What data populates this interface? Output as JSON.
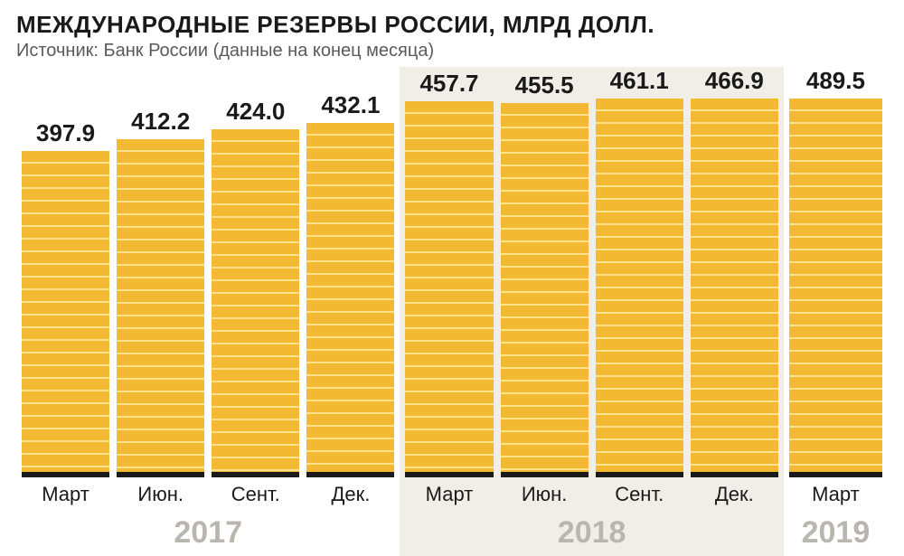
{
  "title": "МЕЖДУНАРОДНЫЕ РЕЗЕРВЫ РОССИИ, МЛРД ДОЛЛ.",
  "subtitle": "Источник: Банк России (данные на конец месяца)",
  "chart": {
    "type": "bar",
    "y_max": 500,
    "bar_fill": "#f4b933",
    "bar_stripe": "#ffe28a",
    "bar_base": "#1a1a1a",
    "value_fontsize": 26,
    "value_color": "#1a1a1a",
    "month_fontsize": 22,
    "month_color": "#1a1a1a",
    "year_fontsize": 34,
    "year_color": "#b9b6af",
    "background_default": "#ffffff",
    "background_alt": "#f1eee8",
    "groups": [
      {
        "year": "2017",
        "bg": "#ffffff",
        "bars": [
          {
            "month": "Март",
            "value": 397.9
          },
          {
            "month": "Июн.",
            "value": 412.2
          },
          {
            "month": "Сент.",
            "value": 424.0
          },
          {
            "month": "Дек.",
            "value": 432.1
          }
        ]
      },
      {
        "year": "2018",
        "bg": "#f1eee8",
        "bars": [
          {
            "month": "Март",
            "value": 457.7
          },
          {
            "month": "Июн.",
            "value": 455.5
          },
          {
            "month": "Сент.",
            "value": 461.1
          },
          {
            "month": "Дек.",
            "value": 466.9
          }
        ]
      },
      {
        "year": "2019",
        "bg": "#ffffff",
        "bars": [
          {
            "month": "Март",
            "value": 489.5
          }
        ]
      }
    ]
  }
}
